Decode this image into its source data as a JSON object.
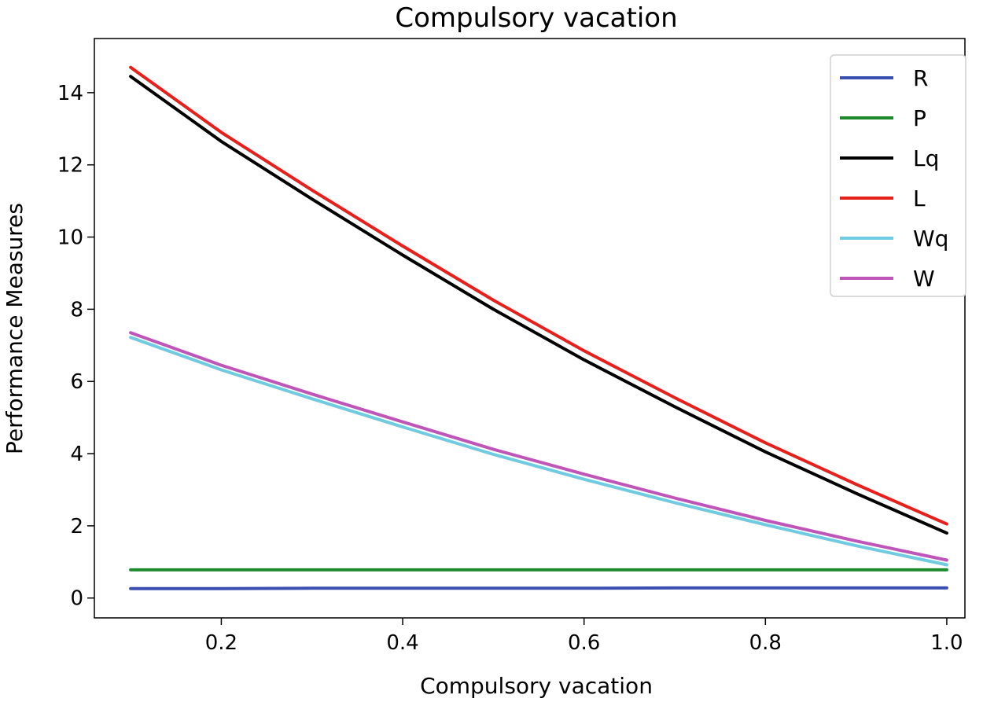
{
  "chart_data": {
    "type": "line",
    "title": "Compulsory vacation",
    "xlabel": "Compulsory vacation",
    "ylabel": "Performance Measures",
    "xlim": [
      0.06,
      1.02
    ],
    "ylim": [
      -0.55,
      15.5
    ],
    "xticks": [
      "0.2",
      "0.4",
      "0.6",
      "0.8",
      "1.0"
    ],
    "yticks": [
      "0",
      "2",
      "4",
      "6",
      "8",
      "10",
      "12",
      "14"
    ],
    "x": [
      0.1,
      0.2,
      0.3,
      0.4,
      0.5,
      0.6,
      0.7,
      0.8,
      0.9,
      1.0
    ],
    "series": [
      {
        "name": "R",
        "color": "#3a4fb0",
        "values": [
          0.26,
          0.26,
          0.27,
          0.27,
          0.27,
          0.27,
          0.28,
          0.28,
          0.28,
          0.28
        ]
      },
      {
        "name": "P",
        "color": "#1e8a2e",
        "values": [
          0.78,
          0.78,
          0.78,
          0.78,
          0.78,
          0.78,
          0.78,
          0.78,
          0.78,
          0.78
        ]
      },
      {
        "name": "Lq",
        "color": "#000000",
        "values": [
          14.45,
          12.65,
          11.05,
          9.5,
          8.0,
          6.6,
          5.3,
          4.05,
          2.9,
          1.8
        ]
      },
      {
        "name": "L",
        "color": "#e8201c",
        "values": [
          14.7,
          12.9,
          11.3,
          9.75,
          8.25,
          6.85,
          5.55,
          4.3,
          3.15,
          2.05
        ]
      },
      {
        "name": "Wq",
        "color": "#6fcbe0",
        "values": [
          7.22,
          6.32,
          5.52,
          4.74,
          3.98,
          3.29,
          2.64,
          2.03,
          1.45,
          0.92
        ]
      },
      {
        "name": "W",
        "color": "#bf55b8",
        "values": [
          7.35,
          6.45,
          5.65,
          4.88,
          4.12,
          3.43,
          2.77,
          2.15,
          1.58,
          1.05
        ]
      }
    ],
    "legend": "upper right",
    "grid": false
  }
}
